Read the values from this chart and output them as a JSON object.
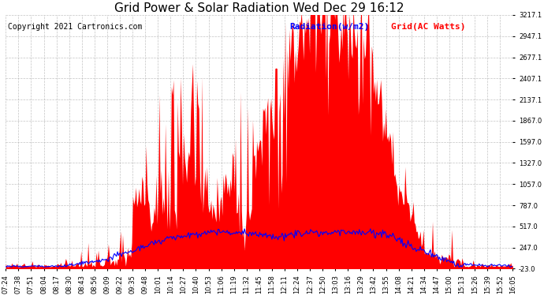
{
  "title": "Grid Power & Solar Radiation Wed Dec 29 16:12",
  "copyright": "Copyright 2021 Cartronics.com",
  "legend_radiation": "Radiation(w/m2)",
  "legend_grid": "Grid(AC Watts)",
  "legend_radiation_color": "#0000ff",
  "legend_grid_color": "#ff0000",
  "fill_color": "#ff0000",
  "line_color": "#0000ff",
  "background_color": "#ffffff",
  "grid_color": "#aaaaaa",
  "ylim": [
    -23.0,
    3217.1
  ],
  "yticks": [
    -23.0,
    247.0,
    517.0,
    787.0,
    1057.0,
    1327.0,
    1597.0,
    1867.0,
    2137.1,
    2407.1,
    2677.1,
    2947.1,
    3217.1
  ],
  "title_fontsize": 11,
  "copyright_fontsize": 7,
  "legend_fontsize": 8,
  "tick_fontsize": 6,
  "x_tick_rotation": 90,
  "xtick_labels": [
    "07:24",
    "07:38",
    "07:51",
    "08:04",
    "08:17",
    "08:30",
    "08:43",
    "08:56",
    "09:09",
    "09:22",
    "09:35",
    "09:48",
    "10:01",
    "10:14",
    "10:27",
    "10:40",
    "10:53",
    "11:06",
    "11:19",
    "11:32",
    "11:45",
    "11:58",
    "12:11",
    "12:24",
    "12:37",
    "12:50",
    "13:03",
    "13:16",
    "13:29",
    "13:42",
    "13:55",
    "14:08",
    "14:21",
    "14:34",
    "14:47",
    "15:00",
    "15:13",
    "15:26",
    "15:39",
    "15:52",
    "16:05"
  ]
}
